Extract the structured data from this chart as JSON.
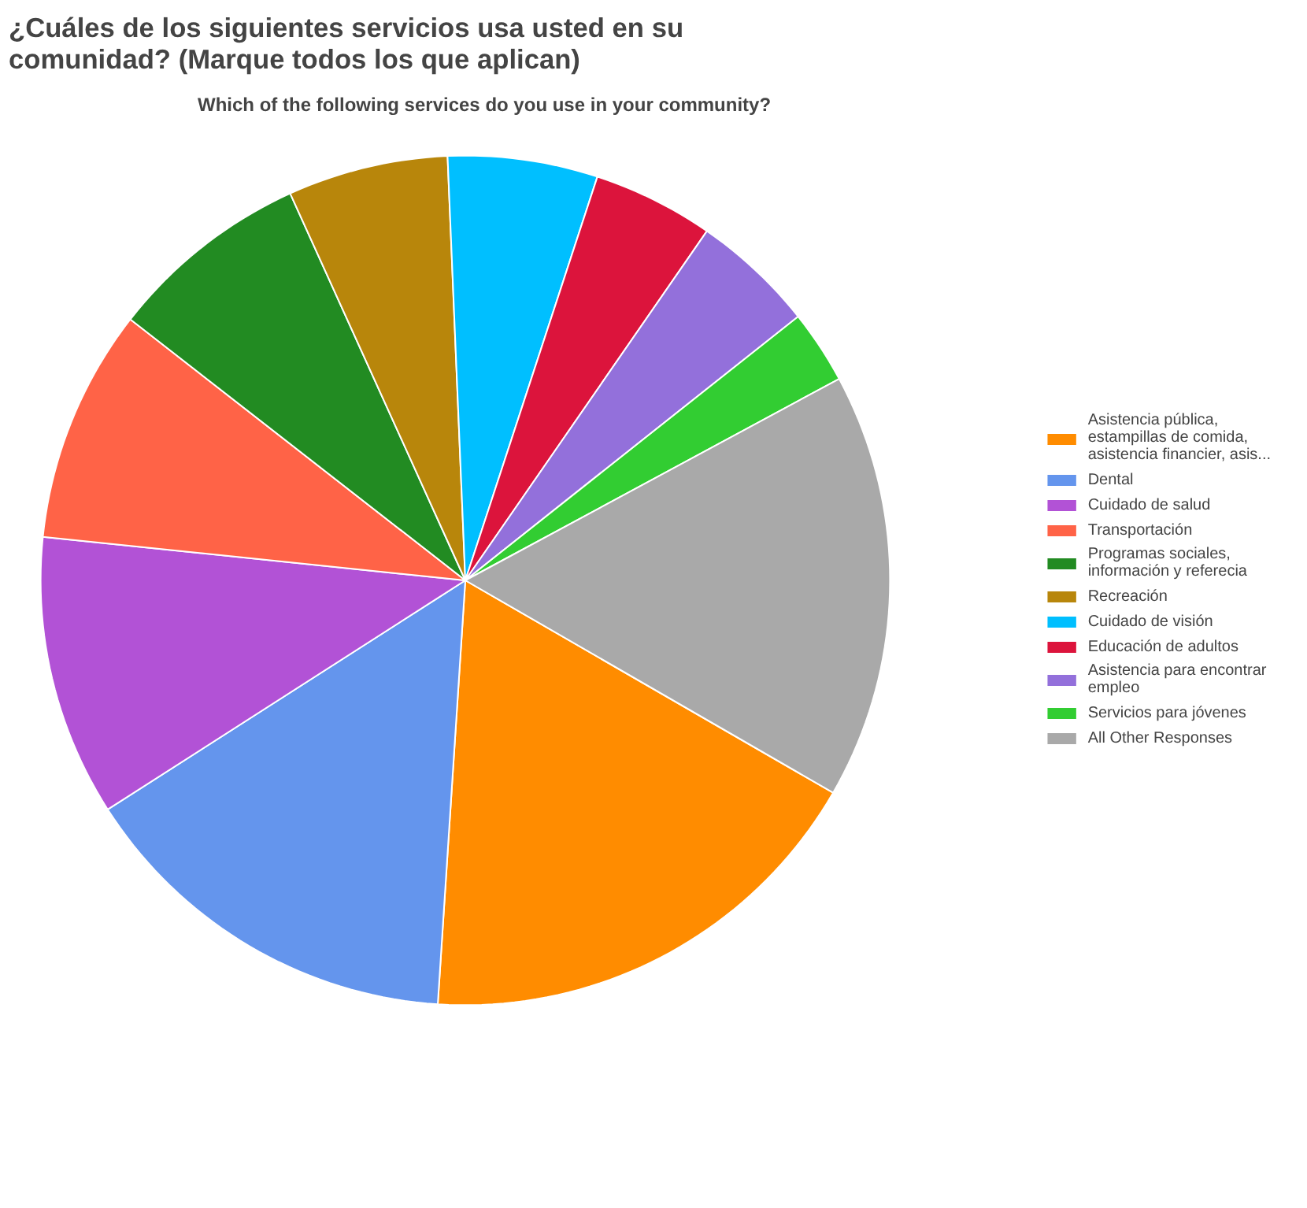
{
  "chart_data": {
    "type": "pie",
    "title": "Which of the following services do you use in your community?",
    "subtitle": "¿Cuáles de los siguientes servicios usa usted en su comunidad? (Marque todos los que aplican)",
    "categories": [
      "Asistencia pública, estampillas de comida, asistencia financier, asis...",
      "Dental",
      "Cuidado de salud",
      "Transportación",
      "Programas sociales, información y referecia",
      "Recreación",
      "Cuidado de visión",
      "Educación de adultos",
      "Asistencia para encontrar empleo",
      "Servicios para jóvenes",
      "All Other Responses"
    ],
    "values": [
      17.7,
      14.9,
      10.7,
      8.9,
      7.7,
      6.1,
      5.7,
      4.6,
      4.7,
      2.8,
      16.2
    ],
    "colors": [
      "#ff8c00",
      "#6495ed",
      "#b252d6",
      "#ff6347",
      "#228b22",
      "#b8860b",
      "#00bfff",
      "#dc143c",
      "#9370db",
      "#32cd32",
      "#a9a9a9"
    ],
    "legend": "right"
  }
}
